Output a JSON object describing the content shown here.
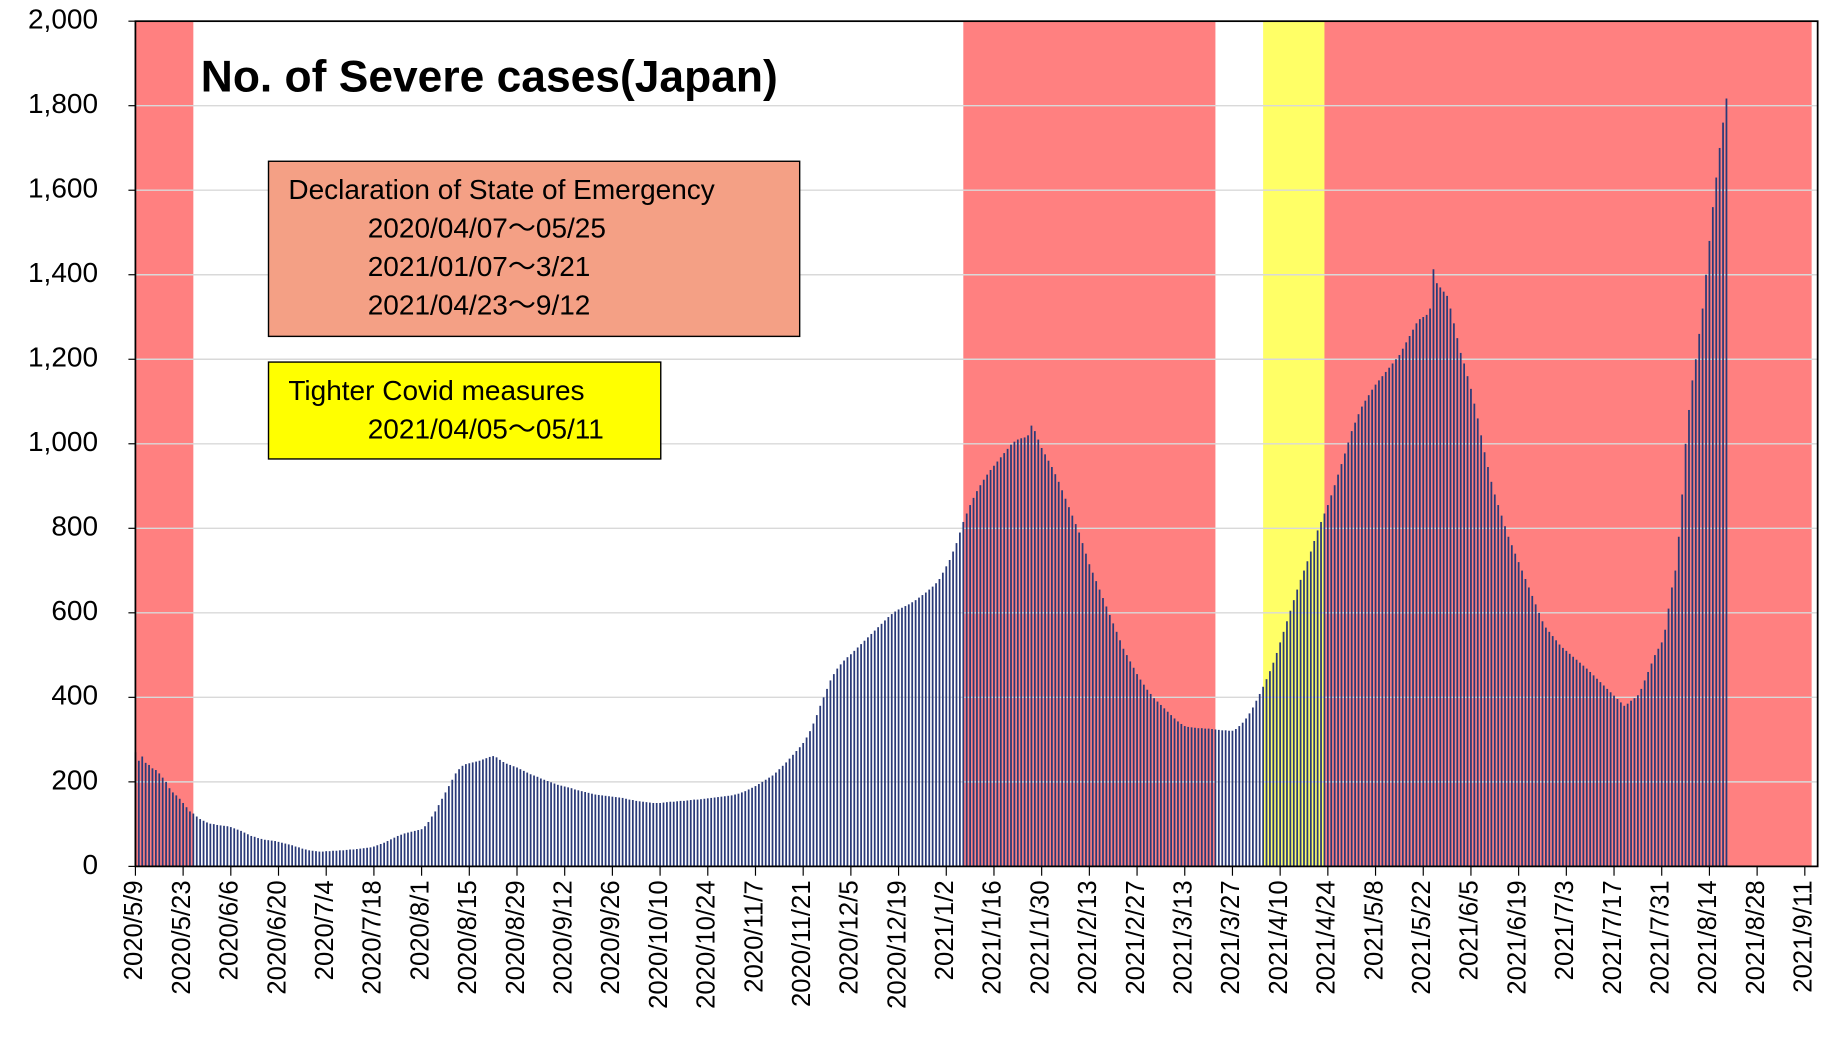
{
  "chart_data": {
    "type": "bar",
    "title": "No. of Severe cases(Japan)",
    "color": "#2a3a78",
    "grid": true,
    "ylim": [
      0,
      2000
    ],
    "yticks": [
      0,
      200,
      400,
      600,
      800,
      {
        "value": 1000,
        "label": "1,000"
      },
      {
        "value": 1200,
        "label": "1,200"
      },
      {
        "value": 1400,
        "label": "1,400"
      },
      {
        "value": 1600,
        "label": "1,600"
      },
      {
        "value": 1800,
        "label": "1,800"
      },
      {
        "value": 2000,
        "label": "2,000"
      }
    ],
    "shaded_periods": [
      {
        "from": "2020/04/07",
        "to": "2020/05/25",
        "color": "#ff8080"
      },
      {
        "from": "2021/01/07",
        "to": "2021/03/21",
        "color": "#ff8080"
      },
      {
        "from": "2021/04/05",
        "to": "2021/05/11",
        "color": "#ffff66"
      },
      {
        "from": "2021/04/23",
        "to": "2021/09/12",
        "color": "#ff8080"
      }
    ],
    "annotations": [
      {
        "color": "#f4a085",
        "lines": [
          "Declaration of State of Emergency",
          "2020/04/07～05/25",
          "2021/01/07～3/21",
          "2021/04/23～9/12"
        ]
      },
      {
        "color": "#ffff00",
        "lines": [
          "Tighter Covid measures",
          "2021/04/05～05/11"
        ]
      }
    ],
    "categories": [
      "2020/5/9",
      null,
      null,
      null,
      null,
      null,
      null,
      null,
      null,
      null,
      null,
      null,
      null,
      null,
      "2020/5/23",
      null,
      null,
      null,
      null,
      null,
      null,
      null,
      null,
      null,
      null,
      null,
      null,
      null,
      "2020/6/6",
      null,
      null,
      null,
      null,
      null,
      null,
      null,
      null,
      null,
      null,
      null,
      null,
      null,
      "2020/6/20",
      null,
      null,
      null,
      null,
      null,
      null,
      null,
      null,
      null,
      null,
      null,
      null,
      null,
      "2020/7/4",
      null,
      null,
      null,
      null,
      null,
      null,
      null,
      null,
      null,
      null,
      null,
      null,
      null,
      "2020/7/18",
      null,
      null,
      null,
      null,
      null,
      null,
      null,
      null,
      null,
      null,
      null,
      null,
      null,
      "2020/8/1",
      null,
      null,
      null,
      null,
      null,
      null,
      null,
      null,
      null,
      null,
      null,
      null,
      null,
      "2020/8/15",
      null,
      null,
      null,
      null,
      null,
      null,
      null,
      null,
      null,
      null,
      null,
      null,
      null,
      "2020/8/29",
      null,
      null,
      null,
      null,
      null,
      null,
      null,
      null,
      null,
      null,
      null,
      null,
      null,
      "2020/9/12",
      null,
      null,
      null,
      null,
      null,
      null,
      null,
      null,
      null,
      null,
      null,
      null,
      null,
      "2020/9/26",
      null,
      null,
      null,
      null,
      null,
      null,
      null,
      null,
      null,
      null,
      null,
      null,
      null,
      "2020/10/10",
      null,
      null,
      null,
      null,
      null,
      null,
      null,
      null,
      null,
      null,
      null,
      null,
      null,
      "2020/10/24",
      null,
      null,
      null,
      null,
      null,
      null,
      null,
      null,
      null,
      null,
      null,
      null,
      null,
      "2020/11/7",
      null,
      null,
      null,
      null,
      null,
      null,
      null,
      null,
      null,
      null,
      null,
      null,
      null,
      "2020/11/21",
      null,
      null,
      null,
      null,
      null,
      null,
      null,
      null,
      null,
      null,
      null,
      null,
      null,
      "2020/12/5",
      null,
      null,
      null,
      null,
      null,
      null,
      null,
      null,
      null,
      null,
      null,
      null,
      null,
      "2020/12/19",
      null,
      null,
      null,
      null,
      null,
      null,
      null,
      null,
      null,
      null,
      null,
      null,
      null,
      "2021/1/2",
      null,
      null,
      null,
      null,
      null,
      null,
      null,
      null,
      null,
      null,
      null,
      null,
      null,
      "2021/1/16",
      null,
      null,
      null,
      null,
      null,
      null,
      null,
      null,
      null,
      null,
      null,
      null,
      null,
      "2021/1/30",
      null,
      null,
      null,
      null,
      null,
      null,
      null,
      null,
      null,
      null,
      null,
      null,
      null,
      "2021/2/13",
      null,
      null,
      null,
      null,
      null,
      null,
      null,
      null,
      null,
      null,
      null,
      null,
      null,
      "2021/2/27",
      null,
      null,
      null,
      null,
      null,
      null,
      null,
      null,
      null,
      null,
      null,
      null,
      null,
      "2021/3/13",
      null,
      null,
      null,
      null,
      null,
      null,
      null,
      null,
      null,
      null,
      null,
      null,
      null,
      "2021/3/27",
      null,
      null,
      null,
      null,
      null,
      null,
      null,
      null,
      null,
      null,
      null,
      null,
      null,
      "2021/4/10",
      null,
      null,
      null,
      null,
      null,
      null,
      null,
      null,
      null,
      null,
      null,
      null,
      null,
      "2021/4/24",
      null,
      null,
      null,
      null,
      null,
      null,
      null,
      null,
      null,
      null,
      null,
      null,
      null,
      "2021/5/8",
      null,
      null,
      null,
      null,
      null,
      null,
      null,
      null,
      null,
      null,
      null,
      null,
      null,
      "2021/5/22",
      null,
      null,
      null,
      null,
      null,
      null,
      null,
      null,
      null,
      null,
      null,
      null,
      null,
      "2021/6/5",
      null,
      null,
      null,
      null,
      null,
      null,
      null,
      null,
      null,
      null,
      null,
      null,
      null,
      "2021/6/19",
      null,
      null,
      null,
      null,
      null,
      null,
      null,
      null,
      null,
      null,
      null,
      null,
      null,
      "2021/7/3",
      null,
      null,
      null,
      null,
      null,
      null,
      null,
      null,
      null,
      null,
      null,
      null,
      null,
      "2021/7/17",
      null,
      null,
      null,
      null,
      null,
      null,
      null,
      null,
      null,
      null,
      null,
      null,
      null,
      "2021/7/31",
      null,
      null,
      null,
      null,
      null,
      null,
      null,
      null,
      null,
      null,
      null,
      null,
      null,
      "2021/8/14",
      null,
      null,
      null,
      null,
      null,
      null,
      null,
      null,
      null,
      null,
      null,
      null,
      null,
      "2021/8/28",
      null,
      null,
      null,
      null,
      null,
      null,
      null,
      null,
      null,
      null,
      null,
      null,
      null,
      "2021/9/11"
    ],
    "values": [
      270,
      250,
      260,
      245,
      240,
      232,
      228,
      220,
      210,
      200,
      185,
      175,
      168,
      160,
      150,
      140,
      130,
      125,
      118,
      112,
      108,
      104,
      101,
      100,
      98,
      97,
      96,
      95,
      93,
      90,
      87,
      84,
      80,
      76,
      72,
      70,
      67,
      65,
      63,
      62,
      61,
      60,
      58,
      56,
      54,
      52,
      50,
      47,
      45,
      42,
      40,
      38,
      37,
      36,
      35,
      35,
      36,
      36,
      37,
      37,
      38,
      38,
      39,
      40,
      40,
      41,
      42,
      43,
      44,
      45,
      47,
      50,
      53,
      56,
      60,
      64,
      68,
      72,
      75,
      78,
      80,
      82,
      84,
      86,
      88,
      95,
      105,
      118,
      130,
      145,
      160,
      175,
      190,
      205,
      220,
      230,
      238,
      242,
      244,
      246,
      248,
      250,
      253,
      256,
      259,
      261,
      258,
      252,
      247,
      243,
      240,
      237,
      234,
      230,
      226,
      222,
      218,
      215,
      212,
      208,
      205,
      202,
      199,
      196,
      193,
      191,
      189,
      187,
      185,
      182,
      180,
      178,
      176,
      174,
      172,
      170,
      169,
      168,
      167,
      166,
      165,
      164,
      163,
      162,
      160,
      158,
      157,
      155,
      154,
      153,
      152,
      151,
      150,
      150,
      150,
      151,
      152,
      153,
      153,
      154,
      155,
      155,
      156,
      157,
      158,
      158,
      159,
      160,
      161,
      162,
      163,
      164,
      165,
      166,
      167,
      168,
      170,
      172,
      175,
      178,
      182,
      186,
      190,
      195,
      200,
      205,
      210,
      215,
      222,
      230,
      238,
      246,
      255,
      264,
      273,
      282,
      292,
      305,
      320,
      338,
      358,
      380,
      400,
      420,
      440,
      455,
      468,
      478,
      487,
      495,
      502,
      510,
      518,
      526,
      534,
      542,
      550,
      558,
      566,
      574,
      582,
      590,
      597,
      603,
      608,
      612,
      616,
      620,
      625,
      630,
      636,
      642,
      648,
      655,
      662,
      670,
      680,
      695,
      710,
      725,
      745,
      765,
      790,
      815,
      835,
      855,
      872,
      888,
      902,
      915,
      927,
      938,
      948,
      958,
      968,
      978,
      988,
      998,
      1005,
      1010,
      1013,
      1015,
      1020,
      1043,
      1030,
      1010,
      990,
      975,
      960,
      945,
      928,
      910,
      890,
      870,
      850,
      830,
      810,
      790,
      765,
      740,
      715,
      695,
      675,
      655,
      635,
      615,
      595,
      575,
      555,
      535,
      515,
      500,
      485,
      470,
      455,
      442,
      430,
      418,
      408,
      398,
      390,
      382,
      374,
      366,
      358,
      350,
      343,
      337,
      332,
      330,
      329,
      328,
      327,
      327,
      326,
      326,
      325,
      324,
      323,
      322,
      322,
      321,
      321,
      325,
      332,
      340,
      350,
      362,
      376,
      392,
      408,
      425,
      443,
      462,
      482,
      505,
      530,
      555,
      580,
      605,
      630,
      655,
      678,
      700,
      722,
      745,
      770,
      795,
      815,
      835,
      855,
      878,
      902,
      927,
      952,
      977,
      1003,
      1030,
      1050,
      1070,
      1088,
      1102,
      1115,
      1128,
      1140,
      1150,
      1160,
      1170,
      1180,
      1190,
      1200,
      1210,
      1225,
      1240,
      1255,
      1270,
      1285,
      1295,
      1300,
      1305,
      1320,
      1413,
      1380,
      1370,
      1360,
      1350,
      1320,
      1285,
      1250,
      1215,
      1190,
      1160,
      1130,
      1095,
      1060,
      1020,
      980,
      945,
      910,
      880,
      855,
      830,
      805,
      780,
      760,
      740,
      720,
      700,
      680,
      660,
      640,
      620,
      600,
      580,
      565,
      555,
      545,
      535,
      525,
      517,
      510,
      503,
      496,
      489,
      482,
      475,
      468,
      460,
      452,
      444,
      436,
      428,
      420,
      412,
      404,
      396,
      388,
      380,
      385,
      392,
      398,
      405,
      420,
      440,
      460,
      480,
      500,
      515,
      530,
      560,
      610,
      660,
      700,
      780,
      880,
      1000,
      1080,
      1150,
      1200,
      1260,
      1320,
      1400,
      1480,
      1560,
      1630,
      1700,
      1760,
      1817,
      null,
      null,
      null,
      null,
      null,
      null,
      null,
      null,
      null,
      null,
      null,
      null,
      null,
      null,
      null,
      null,
      null,
      null,
      null,
      null,
      null,
      null,
      null
    ]
  }
}
